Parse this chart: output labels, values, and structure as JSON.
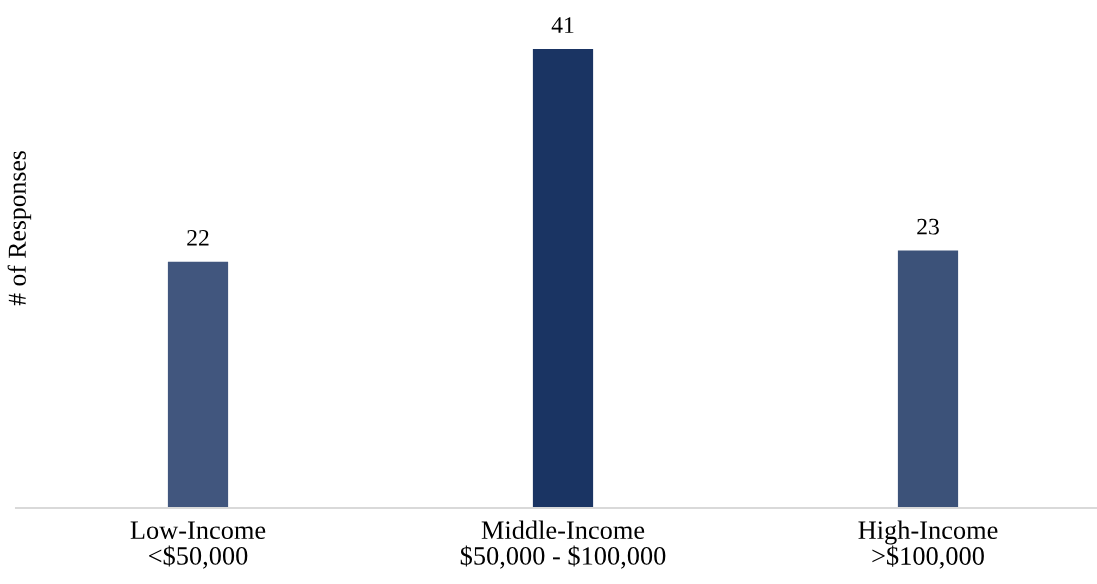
{
  "chart_data": {
    "type": "bar",
    "categories": [
      "Low-Income\n<$50,000",
      "Middle-Income\n$50,000 - $100,000",
      "High-Income\n>$100,000"
    ],
    "values": [
      22,
      41,
      23
    ],
    "colors": [
      "#41567e",
      "#1a3463",
      "#3c5279"
    ],
    "ylabel": "# of Responses",
    "data_labels": true,
    "tick_labels": "x"
  }
}
